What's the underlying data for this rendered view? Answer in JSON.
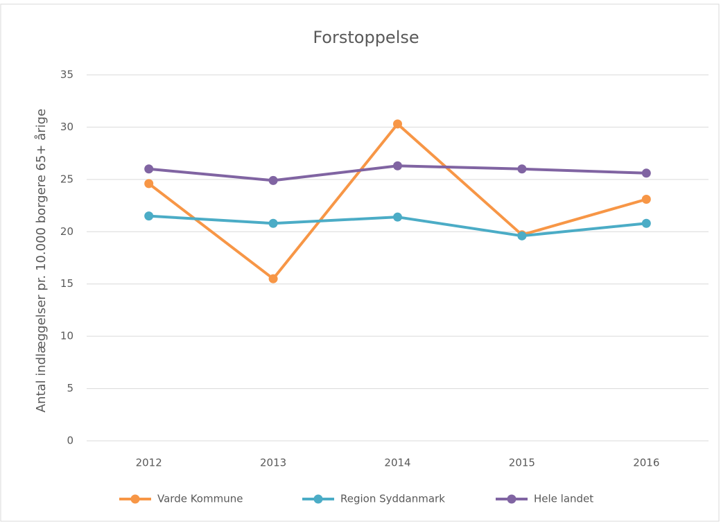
{
  "chart_data": {
    "type": "line",
    "title": "Forstoppelse",
    "y_label": "Antal indlæggelser pr. 10.000 borgere 65+ årige",
    "categories": [
      "2012",
      "2013",
      "2014",
      "2015",
      "2016"
    ],
    "series": [
      {
        "name": "Varde Kommune",
        "color": "#f79646",
        "values": [
          24.6,
          15.5,
          30.3,
          19.7,
          23.1
        ]
      },
      {
        "name": "Region Syddanmark",
        "color": "#4bacc6",
        "values": [
          21.5,
          20.8,
          21.4,
          19.6,
          20.8
        ]
      },
      {
        "name": "Hele landet",
        "color": "#8064a2",
        "values": [
          26.0,
          24.9,
          26.3,
          26.0,
          25.6
        ]
      }
    ],
    "ylim": [
      0,
      35
    ],
    "yticks": [
      0,
      5,
      10,
      15,
      20,
      25,
      30,
      35
    ],
    "grid": true,
    "legend": "bottom"
  }
}
